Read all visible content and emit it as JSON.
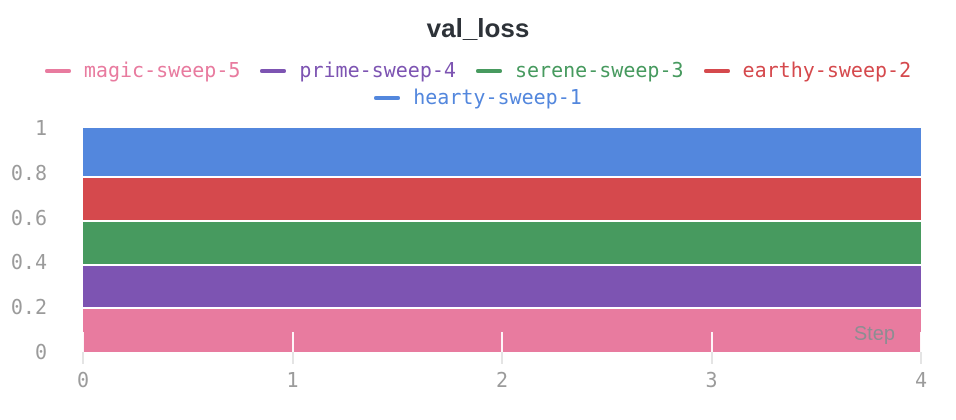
{
  "colors": {
    "background": "#FFFFFF",
    "title_text": "#2D3238",
    "tick_text": "#9B9B9B",
    "step_label_text": "#8D8D92",
    "tick_mark": "#E4E4E4"
  },
  "chart_data": {
    "type": "area",
    "title": "val_loss",
    "xlabel": "Step",
    "ylabel": "",
    "xlim": [
      0,
      4
    ],
    "ylim": [
      0,
      1
    ],
    "x_ticks": [
      0,
      1,
      2,
      3,
      4
    ],
    "y_ticks": [
      0,
      0.2,
      0.4,
      0.6,
      0.8,
      1
    ],
    "grid": false,
    "legend_position": "top-center",
    "series": [
      {
        "name": "magic-sweep-5",
        "color": "#E87B9F",
        "band": [
          0,
          0.195
        ],
        "x_range": [
          0,
          4
        ]
      },
      {
        "name": "prime-sweep-4",
        "color": "#7D54B2",
        "band": [
          0.195,
          0.39
        ],
        "x_range": [
          0,
          4
        ]
      },
      {
        "name": "serene-sweep-3",
        "color": "#479A5F",
        "band": [
          0.39,
          0.585
        ],
        "x_range": [
          0,
          4
        ]
      },
      {
        "name": "earthy-sweep-2",
        "color": "#D5494D",
        "band": [
          0.585,
          0.78
        ],
        "x_range": [
          0,
          4
        ]
      },
      {
        "name": "hearty-sweep-1",
        "color": "#5387DD",
        "band": [
          0.78,
          1.0
        ],
        "x_range": [
          0,
          4
        ]
      }
    ]
  }
}
